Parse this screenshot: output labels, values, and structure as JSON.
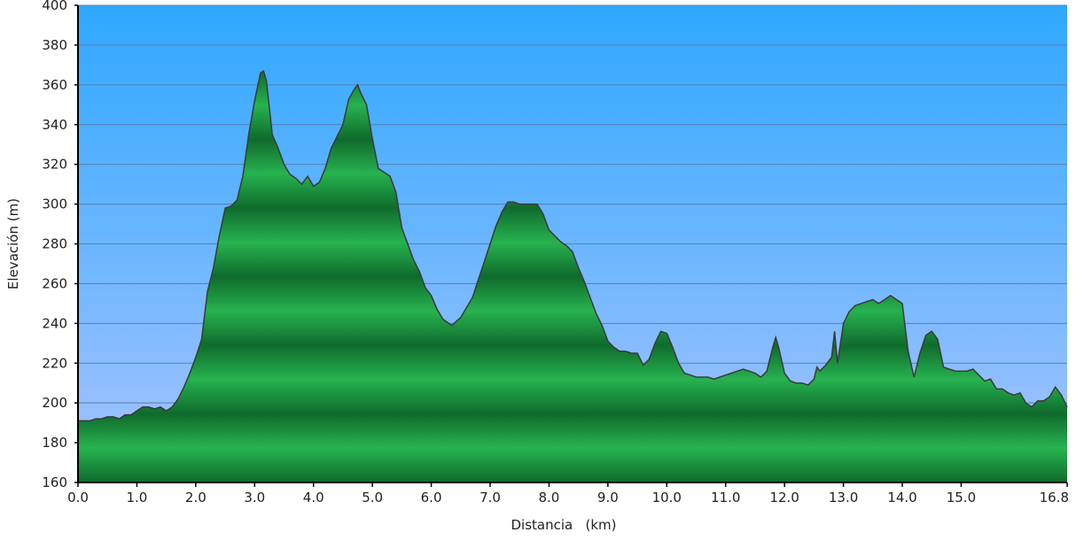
{
  "chart_data": {
    "type": "area",
    "title": "",
    "xlabel": "Distancia   (km)",
    "ylabel": "Elevación (m)",
    "xlim": [
      0,
      16.8
    ],
    "ylim": [
      160,
      400
    ],
    "grid": true,
    "legend": "none",
    "x_ticks": [
      {
        "value": 0,
        "label": "0.0"
      },
      {
        "value": 1,
        "label": "1.0"
      },
      {
        "value": 2,
        "label": "2.0"
      },
      {
        "value": 3,
        "label": "3.0"
      },
      {
        "value": 4,
        "label": "4.0"
      },
      {
        "value": 5,
        "label": "5.0"
      },
      {
        "value": 6,
        "label": "6.0"
      },
      {
        "value": 7,
        "label": "7.0"
      },
      {
        "value": 8,
        "label": "8.0"
      },
      {
        "value": 9,
        "label": "9.0"
      },
      {
        "value": 10,
        "label": "10.0"
      },
      {
        "value": 11,
        "label": "11.0"
      },
      {
        "value": 12,
        "label": "12.0"
      },
      {
        "value": 13,
        "label": "13.0"
      },
      {
        "value": 14,
        "label": "14.0"
      },
      {
        "value": 15,
        "label": "15.0"
      },
      {
        "value": 16.8,
        "label": "16.8"
      }
    ],
    "y_ticks": [
      160,
      180,
      200,
      220,
      240,
      260,
      280,
      300,
      320,
      340,
      360,
      380,
      400
    ],
    "colors": {
      "sky_top": "#2ea8ff",
      "sky_bottom": "#a8c4ff",
      "fill_dark": "#0f6b2c",
      "fill_light": "#27b24f",
      "outline": "#3a3a3a",
      "grid": "#5a7fae"
    },
    "series": [
      {
        "values": [
          [
            0.0,
            191
          ],
          [
            0.1,
            191
          ],
          [
            0.2,
            191
          ],
          [
            0.3,
            192
          ],
          [
            0.4,
            192
          ],
          [
            0.5,
            193
          ],
          [
            0.6,
            193
          ],
          [
            0.7,
            192
          ],
          [
            0.8,
            194
          ],
          [
            0.9,
            194
          ],
          [
            1.0,
            196
          ],
          [
            1.1,
            198
          ],
          [
            1.2,
            198
          ],
          [
            1.3,
            197
          ],
          [
            1.4,
            198
          ],
          [
            1.5,
            196
          ],
          [
            1.6,
            198
          ],
          [
            1.7,
            202
          ],
          [
            1.8,
            208
          ],
          [
            1.9,
            215
          ],
          [
            2.0,
            223
          ],
          [
            2.1,
            232
          ],
          [
            2.2,
            256
          ],
          [
            2.3,
            268
          ],
          [
            2.4,
            284
          ],
          [
            2.5,
            298
          ],
          [
            2.6,
            299
          ],
          [
            2.7,
            302
          ],
          [
            2.8,
            314
          ],
          [
            2.9,
            335
          ],
          [
            3.0,
            352
          ],
          [
            3.1,
            366
          ],
          [
            3.15,
            367
          ],
          [
            3.2,
            362
          ],
          [
            3.3,
            335
          ],
          [
            3.4,
            328
          ],
          [
            3.5,
            320
          ],
          [
            3.6,
            315
          ],
          [
            3.7,
            313
          ],
          [
            3.8,
            310
          ],
          [
            3.9,
            314
          ],
          [
            4.0,
            309
          ],
          [
            4.1,
            311
          ],
          [
            4.2,
            318
          ],
          [
            4.3,
            328
          ],
          [
            4.4,
            334
          ],
          [
            4.5,
            340
          ],
          [
            4.6,
            353
          ],
          [
            4.7,
            358
          ],
          [
            4.75,
            360
          ],
          [
            4.8,
            356
          ],
          [
            4.9,
            350
          ],
          [
            5.0,
            333
          ],
          [
            5.1,
            318
          ],
          [
            5.2,
            316
          ],
          [
            5.3,
            314
          ],
          [
            5.4,
            306
          ],
          [
            5.5,
            288
          ],
          [
            5.6,
            280
          ],
          [
            5.7,
            272
          ],
          [
            5.8,
            266
          ],
          [
            5.9,
            258
          ],
          [
            6.0,
            254
          ],
          [
            6.1,
            247
          ],
          [
            6.2,
            242
          ],
          [
            6.35,
            239
          ],
          [
            6.5,
            243
          ],
          [
            6.6,
            248
          ],
          [
            6.7,
            253
          ],
          [
            6.8,
            262
          ],
          [
            6.9,
            271
          ],
          [
            7.0,
            280
          ],
          [
            7.1,
            289
          ],
          [
            7.2,
            296
          ],
          [
            7.3,
            301
          ],
          [
            7.4,
            301
          ],
          [
            7.5,
            300
          ],
          [
            7.6,
            300
          ],
          [
            7.7,
            300
          ],
          [
            7.8,
            300
          ],
          [
            7.9,
            295
          ],
          [
            8.0,
            287
          ],
          [
            8.1,
            284
          ],
          [
            8.2,
            281
          ],
          [
            8.3,
            279
          ],
          [
            8.4,
            276
          ],
          [
            8.5,
            268
          ],
          [
            8.6,
            261
          ],
          [
            8.7,
            253
          ],
          [
            8.8,
            245
          ],
          [
            8.9,
            239
          ],
          [
            9.0,
            231
          ],
          [
            9.1,
            228
          ],
          [
            9.2,
            226
          ],
          [
            9.3,
            226
          ],
          [
            9.4,
            225
          ],
          [
            9.5,
            225
          ],
          [
            9.6,
            219
          ],
          [
            9.7,
            222
          ],
          [
            9.8,
            230
          ],
          [
            9.9,
            236
          ],
          [
            10.0,
            235
          ],
          [
            10.1,
            228
          ],
          [
            10.2,
            220
          ],
          [
            10.3,
            215
          ],
          [
            10.4,
            214
          ],
          [
            10.5,
            213
          ],
          [
            10.6,
            213
          ],
          [
            10.7,
            213
          ],
          [
            10.8,
            212
          ],
          [
            10.9,
            213
          ],
          [
            11.0,
            214
          ],
          [
            11.1,
            215
          ],
          [
            11.2,
            216
          ],
          [
            11.3,
            217
          ],
          [
            11.4,
            216
          ],
          [
            11.5,
            215
          ],
          [
            11.6,
            213
          ],
          [
            11.7,
            216
          ],
          [
            11.8,
            228
          ],
          [
            11.85,
            233
          ],
          [
            11.9,
            228
          ],
          [
            12.0,
            215
          ],
          [
            12.1,
            211
          ],
          [
            12.2,
            210
          ],
          [
            12.3,
            210
          ],
          [
            12.4,
            209
          ],
          [
            12.5,
            212
          ],
          [
            12.55,
            218
          ],
          [
            12.6,
            216
          ],
          [
            12.7,
            219
          ],
          [
            12.8,
            223
          ],
          [
            12.85,
            236
          ],
          [
            12.9,
            220
          ],
          [
            13.0,
            240
          ],
          [
            13.1,
            246
          ],
          [
            13.2,
            249
          ],
          [
            13.3,
            250
          ],
          [
            13.4,
            251
          ],
          [
            13.5,
            252
          ],
          [
            13.6,
            250
          ],
          [
            13.7,
            252
          ],
          [
            13.8,
            254
          ],
          [
            13.9,
            252
          ],
          [
            14.0,
            250
          ],
          [
            14.1,
            226
          ],
          [
            14.2,
            213
          ],
          [
            14.3,
            225
          ],
          [
            14.4,
            234
          ],
          [
            14.5,
            236
          ],
          [
            14.6,
            232
          ],
          [
            14.7,
            218
          ],
          [
            14.8,
            217
          ],
          [
            14.9,
            216
          ],
          [
            15.0,
            216
          ],
          [
            15.1,
            216
          ],
          [
            15.2,
            217
          ],
          [
            15.3,
            214
          ],
          [
            15.4,
            211
          ],
          [
            15.5,
            212
          ],
          [
            15.6,
            207
          ],
          [
            15.7,
            207
          ],
          [
            15.8,
            205
          ],
          [
            15.9,
            204
          ],
          [
            16.0,
            205
          ],
          [
            16.1,
            200
          ],
          [
            16.2,
            198
          ],
          [
            16.3,
            201
          ],
          [
            16.4,
            201
          ],
          [
            16.5,
            203
          ],
          [
            16.6,
            208
          ],
          [
            16.7,
            204
          ],
          [
            16.8,
            198
          ]
        ]
      }
    ]
  }
}
